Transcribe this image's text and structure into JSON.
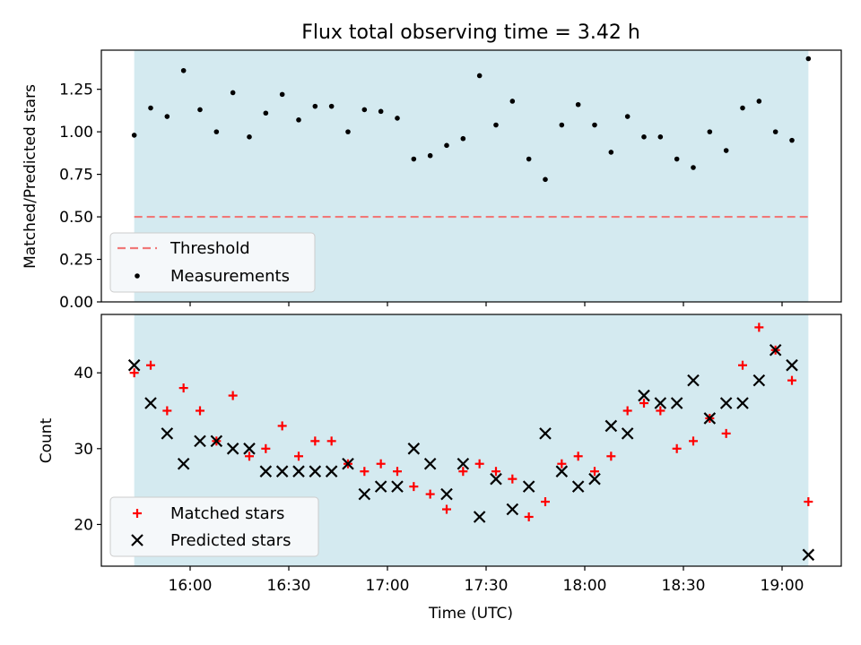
{
  "chart_data": [
    {
      "type": "scatter",
      "title": "Flux total observing time = 3.42 h",
      "xlabel": "",
      "ylabel": "Matched/Predicted stars",
      "ylim": [
        0,
        1.48
      ],
      "yticks": [
        0.0,
        0.25,
        0.5,
        0.75,
        1.0,
        1.25
      ],
      "ytick_labels": [
        "0.00",
        "0.25",
        "0.50",
        "0.75",
        "1.00",
        "1.25"
      ],
      "shaded_region": [
        "15:43",
        "19:08"
      ],
      "threshold": 0.5,
      "legend": [
        "Threshold",
        "Measurements"
      ],
      "legend_location": "lower-left",
      "series": [
        {
          "name": "Measurements",
          "x": [
            "15:43",
            "15:48",
            "15:53",
            "15:58",
            "16:03",
            "16:08",
            "16:13",
            "16:18",
            "16:23",
            "16:28",
            "16:33",
            "16:38",
            "16:43",
            "16:48",
            "16:53",
            "16:58",
            "17:03",
            "17:08",
            "17:13",
            "17:18",
            "17:23",
            "17:28",
            "17:33",
            "17:38",
            "17:43",
            "17:48",
            "17:53",
            "17:58",
            "18:03",
            "18:08",
            "18:13",
            "18:18",
            "18:23",
            "18:28",
            "18:33",
            "18:38",
            "18:43",
            "18:48",
            "18:53",
            "18:58",
            "19:03",
            "19:08"
          ],
          "values": [
            0.98,
            1.14,
            1.09,
            1.36,
            1.13,
            1.0,
            1.23,
            0.97,
            1.11,
            1.22,
            1.07,
            1.15,
            1.15,
            1.0,
            1.13,
            1.12,
            1.08,
            0.84,
            0.86,
            0.92,
            0.96,
            1.33,
            1.04,
            1.18,
            0.84,
            0.72,
            1.04,
            1.16,
            1.04,
            0.88,
            1.09,
            0.97,
            0.97,
            0.84,
            0.79,
            1.0,
            0.89,
            1.14,
            1.18,
            1.0,
            0.95,
            1.43
          ]
        }
      ]
    },
    {
      "type": "scatter",
      "title": "",
      "xlabel": "Time (UTC)",
      "ylabel": "Count",
      "ylim": [
        14.5,
        47.7
      ],
      "yticks": [
        20,
        30,
        40
      ],
      "ytick_labels": [
        "20",
        "30",
        "40"
      ],
      "xticks": [
        "16:00",
        "16:30",
        "17:00",
        "17:30",
        "18:00",
        "18:30",
        "19:00"
      ],
      "xlim": [
        "15:33",
        "19:18"
      ],
      "shaded_region": [
        "15:43",
        "19:08"
      ],
      "legend": [
        "Matched stars",
        "Predicted stars"
      ],
      "legend_location": "lower-left",
      "series": [
        {
          "name": "Matched stars",
          "x": [
            "15:43",
            "15:48",
            "15:53",
            "15:58",
            "16:03",
            "16:08",
            "16:13",
            "16:18",
            "16:23",
            "16:28",
            "16:33",
            "16:38",
            "16:43",
            "16:48",
            "16:53",
            "16:58",
            "17:03",
            "17:08",
            "17:13",
            "17:18",
            "17:23",
            "17:28",
            "17:33",
            "17:38",
            "17:43",
            "17:48",
            "17:53",
            "17:58",
            "18:03",
            "18:08",
            "18:13",
            "18:18",
            "18:23",
            "18:28",
            "18:33",
            "18:38",
            "18:43",
            "18:48",
            "18:53",
            "18:58",
            "19:03",
            "19:08"
          ],
          "values": [
            40,
            41,
            35,
            38,
            35,
            31,
            37,
            29,
            30,
            33,
            29,
            31,
            31,
            28,
            27,
            28,
            27,
            25,
            24,
            22,
            27,
            28,
            27,
            26,
            21,
            23,
            28,
            29,
            27,
            29,
            35,
            36,
            35,
            30,
            31,
            34,
            32,
            41,
            46,
            43,
            39,
            23
          ]
        },
        {
          "name": "Predicted stars",
          "x": [
            "15:43",
            "15:48",
            "15:53",
            "15:58",
            "16:03",
            "16:08",
            "16:13",
            "16:18",
            "16:23",
            "16:28",
            "16:33",
            "16:38",
            "16:43",
            "16:48",
            "16:53",
            "16:58",
            "17:03",
            "17:08",
            "17:13",
            "17:18",
            "17:23",
            "17:28",
            "17:33",
            "17:38",
            "17:43",
            "17:48",
            "17:53",
            "17:58",
            "18:03",
            "18:08",
            "18:13",
            "18:18",
            "18:23",
            "18:28",
            "18:33",
            "18:38",
            "18:43",
            "18:48",
            "18:53",
            "18:58",
            "19:03",
            "19:08"
          ],
          "values": [
            41,
            36,
            32,
            28,
            31,
            31,
            30,
            30,
            27,
            27,
            27,
            27,
            27,
            28,
            24,
            25,
            25,
            30,
            28,
            24,
            28,
            21,
            26,
            22,
            25,
            32,
            27,
            25,
            26,
            33,
            32,
            37,
            36,
            36,
            39,
            34,
            36,
            36,
            39,
            43,
            41,
            16
          ]
        }
      ]
    }
  ],
  "colors": {
    "shade": "#d4eaf0",
    "threshold": "#f07878",
    "measurement": "#000000",
    "matched": "#ff0000",
    "predicted": "#000000",
    "legend_bg": "#f5f8fa"
  }
}
